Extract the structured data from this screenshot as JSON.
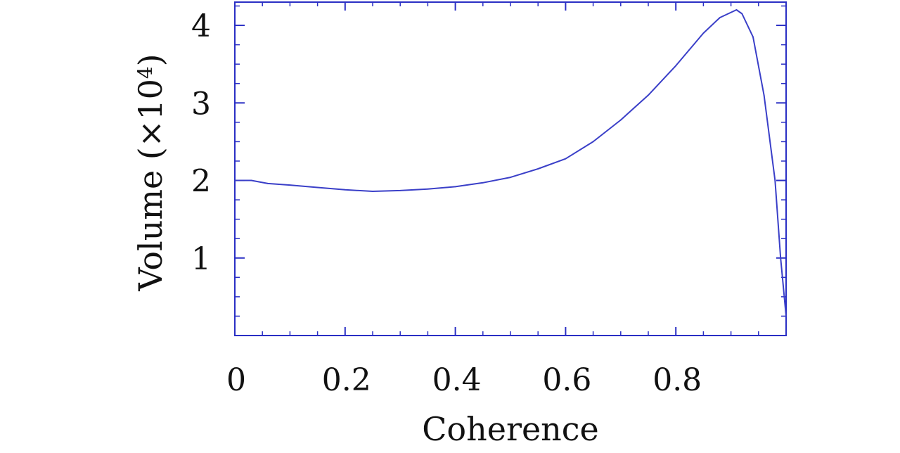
{
  "colors": {
    "axis": "#2a2fc4",
    "series": "#3a3fc8",
    "text": "#111111"
  },
  "chart_data": {
    "type": "line",
    "title": "",
    "xlabel": "Coherence",
    "ylabel": "Volume (×10",
    "ylabel_exponent": "4",
    "ylabel_suffix": ")",
    "xlim": [
      0,
      1.0
    ],
    "ylim": [
      0,
      4.3
    ],
    "xticks": [
      0,
      0.2,
      0.4,
      0.6,
      0.8
    ],
    "xtick_labels": [
      "0",
      "0.2",
      "0.4",
      "0.6",
      "0.8"
    ],
    "yticks": [
      1,
      2,
      3,
      4
    ],
    "ytick_labels": [
      "1",
      "2",
      "3",
      "4"
    ],
    "grid": false,
    "series": [
      {
        "x": [
          0,
          0.03,
          0.06,
          0.1,
          0.15,
          0.2,
          0.25,
          0.3,
          0.35,
          0.4,
          0.45,
          0.5,
          0.55,
          0.6,
          0.65,
          0.7,
          0.75,
          0.8,
          0.85,
          0.88,
          0.91,
          0.92,
          0.94,
          0.96,
          0.98,
          0.99,
          1.0
        ],
        "y": [
          2.0,
          2.0,
          1.96,
          1.94,
          1.91,
          1.88,
          1.86,
          1.87,
          1.89,
          1.92,
          1.97,
          2.04,
          2.15,
          2.28,
          2.5,
          2.78,
          3.1,
          3.48,
          3.9,
          4.1,
          4.2,
          4.15,
          3.85,
          3.1,
          2.0,
          1.0,
          0.25
        ]
      }
    ]
  }
}
